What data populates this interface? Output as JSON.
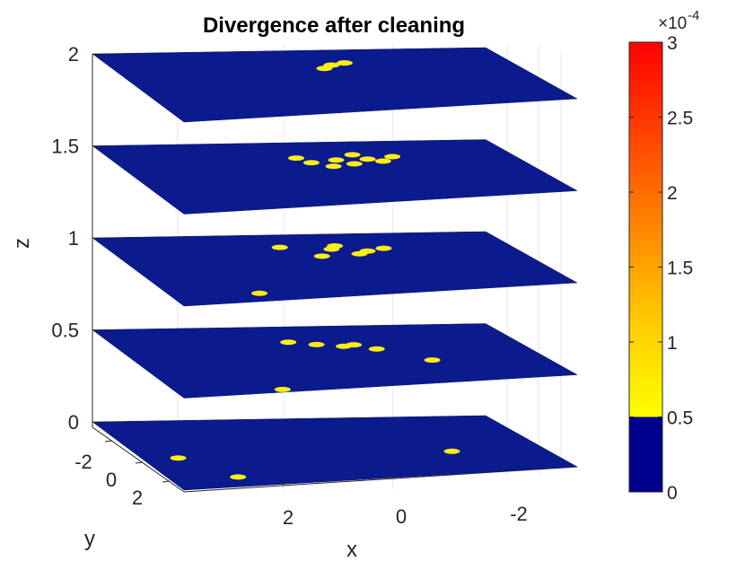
{
  "chart_data": {
    "type": "heatmap",
    "variant": "3d-stacked-slices",
    "title": "Divergence after cleaning",
    "xlabel": "x",
    "ylabel": "y",
    "zlabel": "z",
    "x_ticks": [
      "2",
      "0",
      "-2"
    ],
    "y_ticks": [
      "-2",
      "0",
      "2"
    ],
    "z_ticks": [
      "0",
      "0.5",
      "1",
      "1.5",
      "2"
    ],
    "z_range": [
      0,
      2
    ],
    "slice_z": [
      0,
      0.5,
      1,
      1.5,
      2
    ],
    "colorbar": {
      "exponent_label": "×10",
      "exponent": "-4",
      "ticks": [
        "0",
        "0.5",
        "1",
        "1.5",
        "2",
        "2.5",
        "3"
      ],
      "range": [
        0,
        3
      ],
      "threshold": 0.5,
      "low_color": "#00008f",
      "colormap_stops": [
        "#ffff00",
        "#ffcc00",
        "#ff8800",
        "#ff4400",
        "#ff0000"
      ]
    },
    "field_color": "#0b1a8c",
    "hotspot_color": "#ffee11",
    "grid": true,
    "box": "off"
  }
}
